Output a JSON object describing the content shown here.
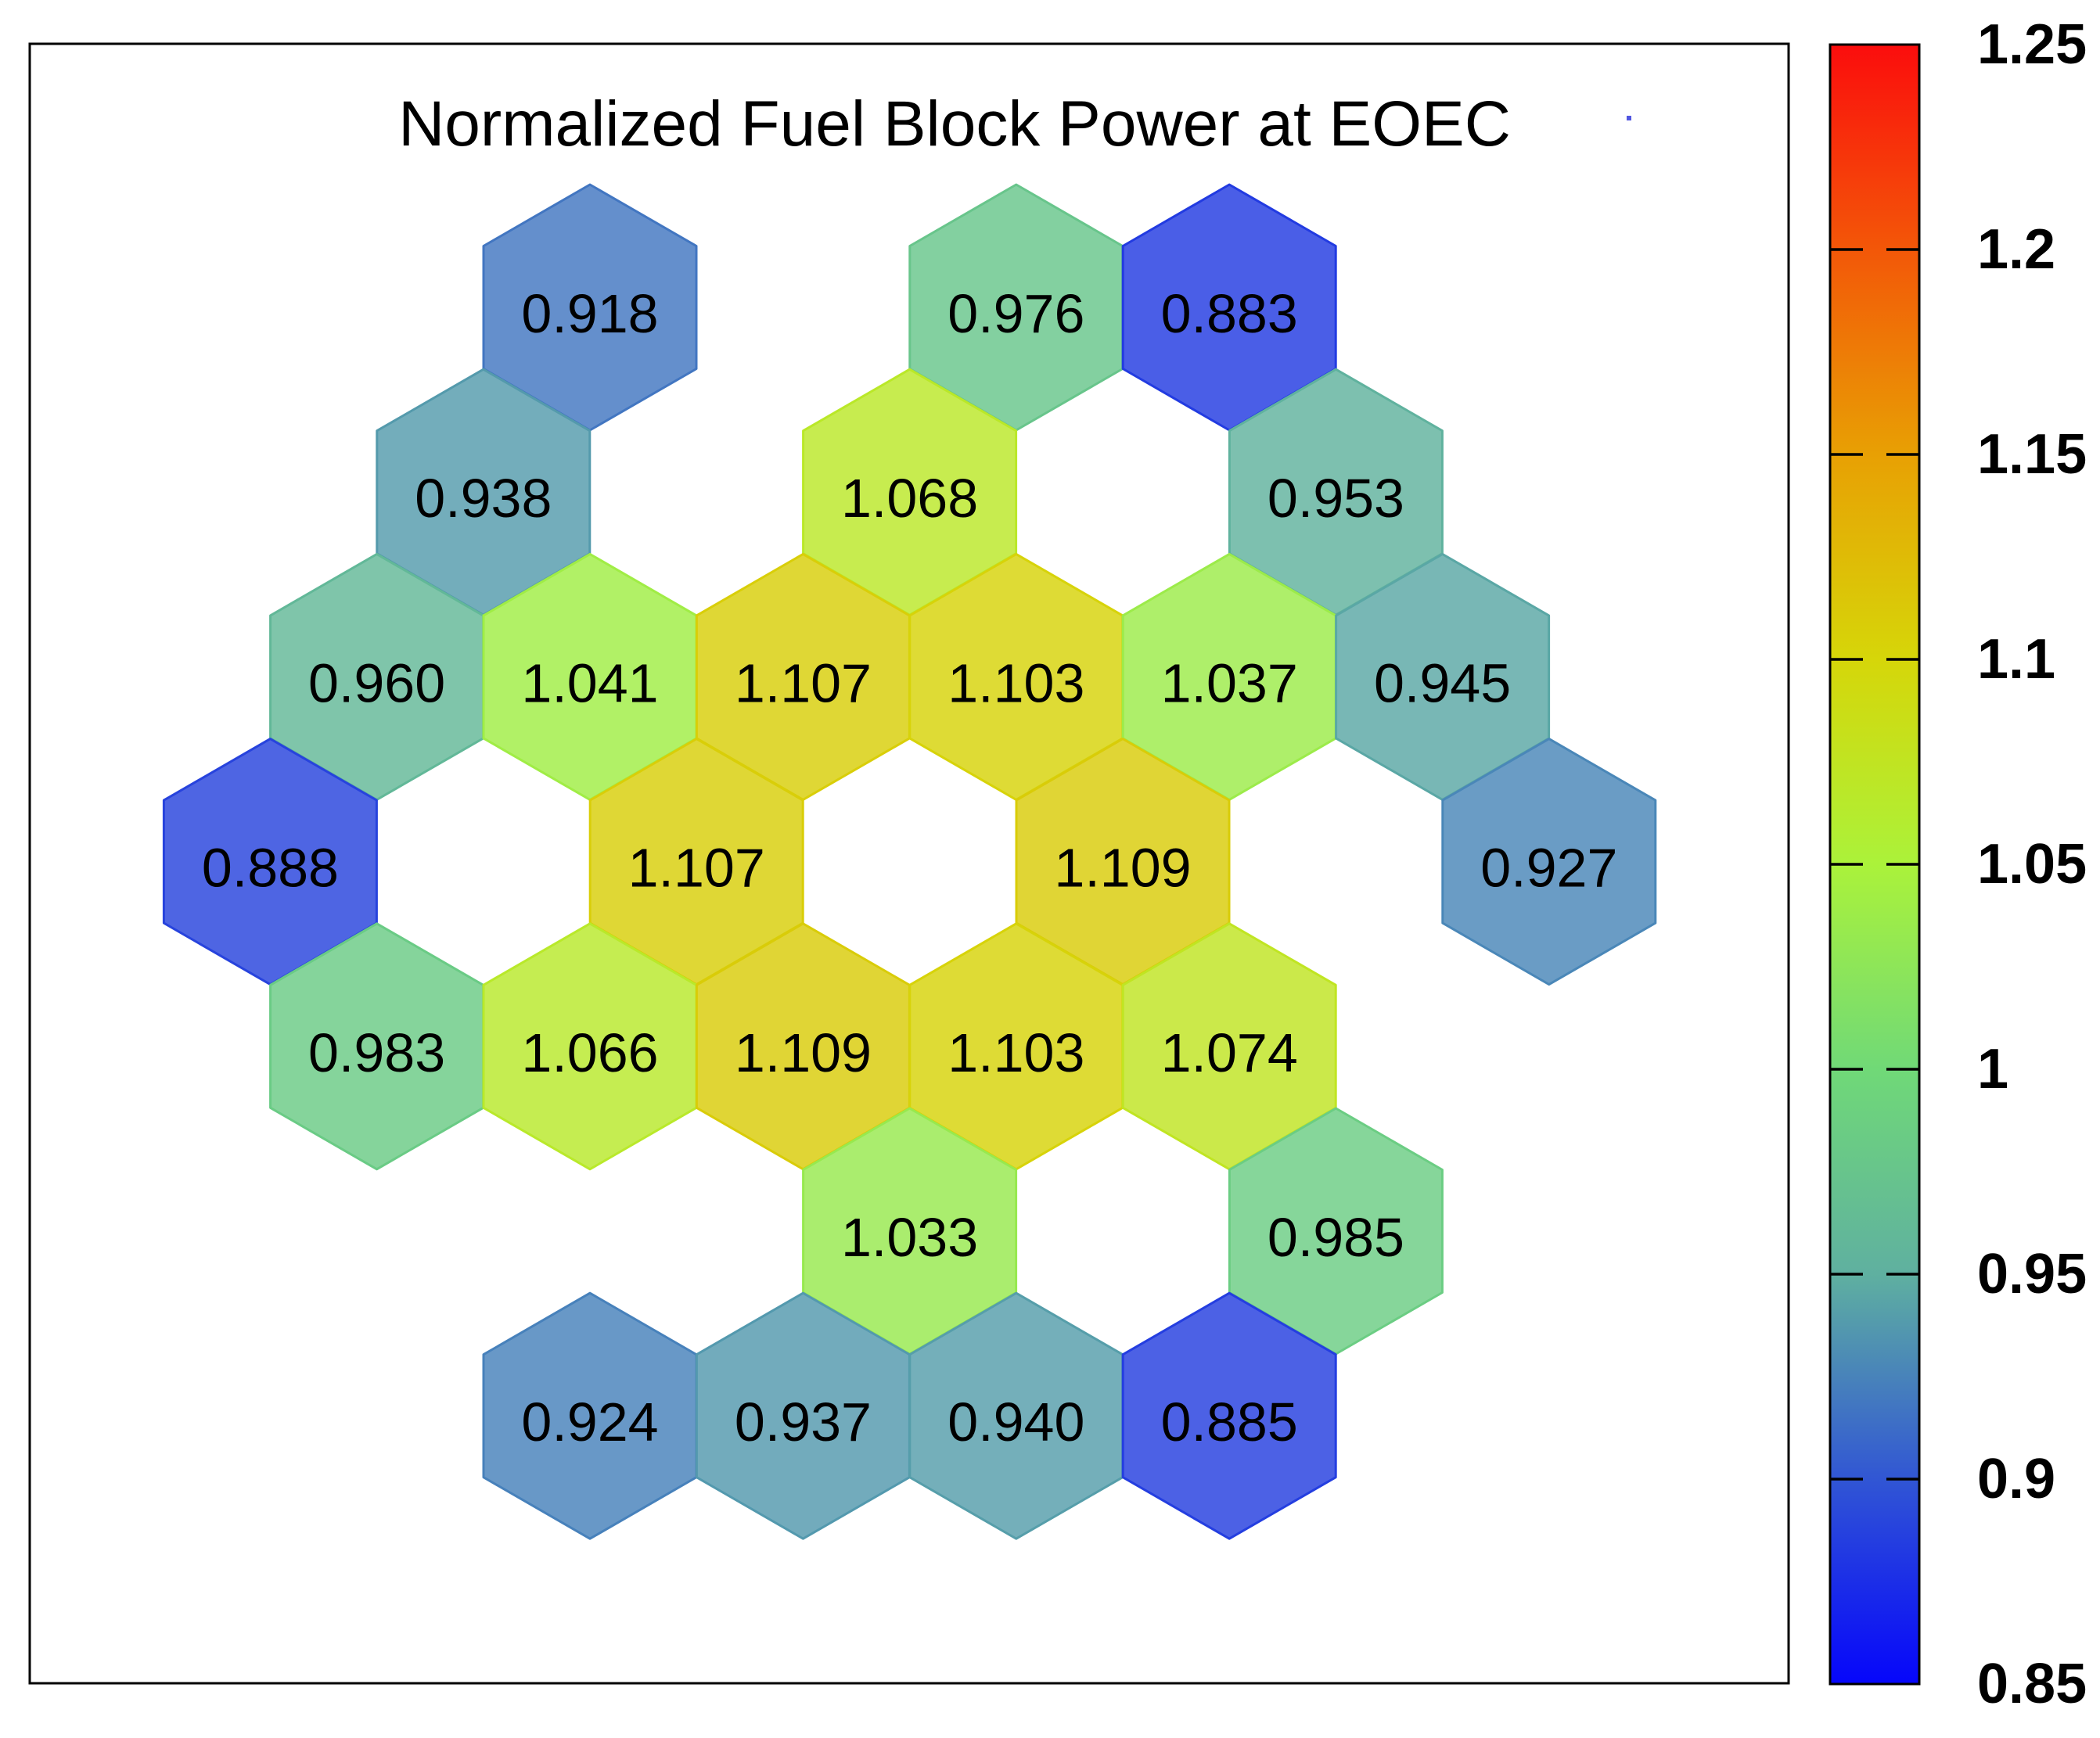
{
  "title": "Normalized Fuel Block Power at EOEC",
  "chart_data": {
    "type": "heatmap",
    "subtype": "hexagonal-core-map",
    "title": "Normalized Fuel Block Power at EOEC",
    "value_range": [
      0.85,
      1.25
    ],
    "grid": "pointy-top hexagons, 7 rows, col in half-widths",
    "legend_position": "right",
    "cells": [
      {
        "row": 0,
        "col": 0,
        "value": 0.918,
        "label": "0.918"
      },
      {
        "row": 0,
        "col": 4,
        "value": 0.976,
        "label": "0.976"
      },
      {
        "row": 0,
        "col": 6,
        "value": 0.883,
        "label": "0.883"
      },
      {
        "row": 1,
        "col": -1,
        "value": 0.938,
        "label": "0.938"
      },
      {
        "row": 1,
        "col": 3,
        "value": 1.068,
        "label": "1.068"
      },
      {
        "row": 1,
        "col": 7,
        "value": 0.953,
        "label": "0.953"
      },
      {
        "row": 2,
        "col": -2,
        "value": 0.96,
        "label": "0.960"
      },
      {
        "row": 2,
        "col": 0,
        "value": 1.041,
        "label": "1.041"
      },
      {
        "row": 2,
        "col": 2,
        "value": 1.107,
        "label": "1.107"
      },
      {
        "row": 2,
        "col": 4,
        "value": 1.103,
        "label": "1.103"
      },
      {
        "row": 2,
        "col": 6,
        "value": 1.037,
        "label": "1.037"
      },
      {
        "row": 2,
        "col": 8,
        "value": 0.945,
        "label": "0.945"
      },
      {
        "row": 3,
        "col": -3,
        "value": 0.888,
        "label": "0.888"
      },
      {
        "row": 3,
        "col": 1,
        "value": 1.107,
        "label": "1.107"
      },
      {
        "row": 3,
        "col": 5,
        "value": 1.109,
        "label": "1.109"
      },
      {
        "row": 3,
        "col": 9,
        "value": 0.927,
        "label": "0.927"
      },
      {
        "row": 4,
        "col": -2,
        "value": 0.983,
        "label": "0.983"
      },
      {
        "row": 4,
        "col": 0,
        "value": 1.066,
        "label": "1.066"
      },
      {
        "row": 4,
        "col": 2,
        "value": 1.109,
        "label": "1.109"
      },
      {
        "row": 4,
        "col": 4,
        "value": 1.103,
        "label": "1.103"
      },
      {
        "row": 4,
        "col": 6,
        "value": 1.074,
        "label": "1.074"
      },
      {
        "row": 5,
        "col": 3,
        "value": 1.033,
        "label": "1.033"
      },
      {
        "row": 5,
        "col": 7,
        "value": 0.985,
        "label": "0.985"
      },
      {
        "row": 6,
        "col": 0,
        "value": 0.924,
        "label": "0.924"
      },
      {
        "row": 6,
        "col": 2,
        "value": 0.937,
        "label": "0.937"
      },
      {
        "row": 6,
        "col": 4,
        "value": 0.94,
        "label": "0.940"
      },
      {
        "row": 6,
        "col": 6,
        "value": 0.885,
        "label": "0.885"
      }
    ]
  },
  "colorbar": {
    "min": 0.85,
    "max": 1.25,
    "tick_labels": [
      "1.25",
      "1.2",
      "1.15",
      "1.1",
      "1.05",
      "1",
      "0.95",
      "0.9",
      "0.85"
    ],
    "tick_values": [
      1.25,
      1.2,
      1.15,
      1.1,
      1.05,
      1,
      0.95,
      0.9,
      0.85
    ],
    "inner_tick_values": [
      1.2,
      1.15,
      1.1,
      1.05,
      1,
      0.95,
      0.9
    ],
    "gradient_stops": [
      {
        "value": 0.85,
        "color": "#0606fb"
      },
      {
        "value": 0.9,
        "color": "#3156d4"
      },
      {
        "value": 0.95,
        "color": "#5fb0a0"
      },
      {
        "value": 1.0,
        "color": "#70d977"
      },
      {
        "value": 1.05,
        "color": "#abf23a"
      },
      {
        "value": 1.1,
        "color": "#d6d609"
      },
      {
        "value": 1.15,
        "color": "#e8a004"
      },
      {
        "value": 1.2,
        "color": "#f35708"
      },
      {
        "value": 1.25,
        "color": "#fb0d0d"
      }
    ],
    "border_color": "#000000"
  },
  "artifact_dot": {
    "color": "#5156e1"
  }
}
